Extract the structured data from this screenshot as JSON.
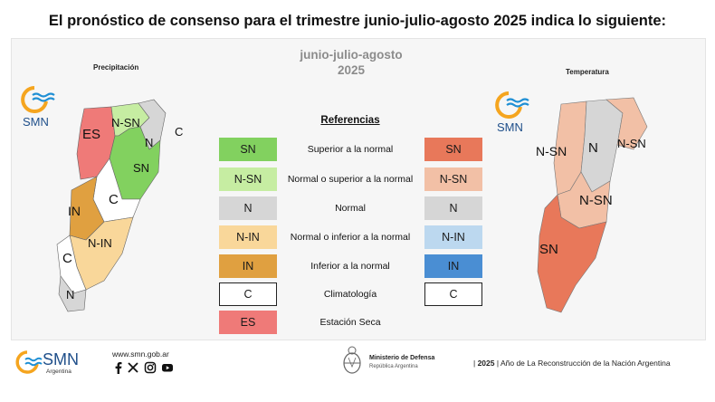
{
  "headline": "El pronóstico de consenso para el trimestre junio-julio-agosto 2025 indica lo siguiente:",
  "season": {
    "line1": "junio-julio-agosto",
    "line2": "2025"
  },
  "precipitation": {
    "title": "Precipitación",
    "labels": [
      "ES",
      "N-SN",
      "N",
      "C",
      "SN",
      "IN",
      "C",
      "N-IN",
      "C",
      "N"
    ]
  },
  "temperature": {
    "title": "Temperatura",
    "labels": [
      "N-SN",
      "N",
      "N-SN",
      "N-SN",
      "SN"
    ]
  },
  "legend": {
    "title": "Referencias",
    "rows": [
      {
        "precip_code": "SN",
        "precip_color": "#82d15f",
        "description": "Superior a la normal",
        "temp_code": "SN",
        "temp_color": "#e8785a"
      },
      {
        "precip_code": "N-SN",
        "precip_color": "#c6eda2",
        "description": "Normal o superior a la normal",
        "temp_code": "N-SN",
        "temp_color": "#f2c0a6"
      },
      {
        "precip_code": "N",
        "precip_color": "#d6d6d6",
        "description": "Normal",
        "temp_code": "N",
        "temp_color": "#d6d6d6"
      },
      {
        "precip_code": "N-IN",
        "precip_color": "#f9d79a",
        "description": "Normal o inferior a la normal",
        "temp_code": "N-IN",
        "temp_color": "#bcd8ef"
      },
      {
        "precip_code": "IN",
        "precip_color": "#e0a040",
        "description": "Inferior a la normal",
        "temp_code": "IN",
        "temp_color": "#4a8ed3"
      },
      {
        "precip_code": "C",
        "precip_color": "#ffffff",
        "description": "Climatología",
        "temp_code": "C",
        "temp_color": "#ffffff"
      },
      {
        "precip_code": "ES",
        "precip_color": "#ef7a78",
        "description": "Estación Seca"
      }
    ]
  },
  "logo": {
    "text": "SMN"
  },
  "footer": {
    "smn": "SMN",
    "smn_sub": "Argentina",
    "url": "www.smn.gob.ar",
    "ministry": "Ministerio de Defensa",
    "ministry_sub": "República Argentina",
    "year": "2025",
    "motto": "| Año de La Reconstrucción de la Nación Argentina"
  },
  "icons": [
    "smn-logo-icon",
    "facebook-icon",
    "x-icon",
    "instagram-icon",
    "youtube-icon",
    "coat-of-arms-icon"
  ]
}
